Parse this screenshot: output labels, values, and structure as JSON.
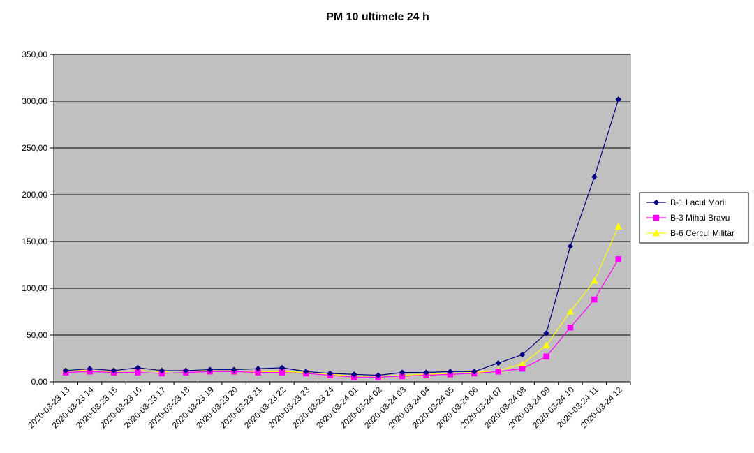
{
  "chart_data": {
    "type": "line",
    "title": "PM 10 ultimele 24 h",
    "xlabel": "",
    "ylabel": "",
    "ylim": [
      0,
      350
    ],
    "yticks": [
      "0,00",
      "50,00",
      "100,00",
      "150,00",
      "200,00",
      "250,00",
      "300,00",
      "350,00"
    ],
    "grid": true,
    "legend_position": "right",
    "plot_background": "#c0c0c0",
    "categories": [
      "2020-03-23 13",
      "2020-03-23 14",
      "2020-03-23 15",
      "2020-03-23 16",
      "2020-03-23 17",
      "2020-03-23 18",
      "2020-03-23 19",
      "2020-03-23 20",
      "2020-03-23 21",
      "2020-03-23 22",
      "2020-03-23 23",
      "2020-03-23 24",
      "2020-03-24 01",
      "2020-03-24 02",
      "2020-03-24 03",
      "2020-03-24 04",
      "2020-03-24 05",
      "2020-03-24 06",
      "2020-03-24 07",
      "2020-03-24 08",
      "2020-03-24 09",
      "2020-03-24 10",
      "2020-03-24 11",
      "2020-03-24 12"
    ],
    "series": [
      {
        "name": "B-1 Lacul Morii",
        "color": "#000080",
        "marker": "diamond",
        "values": [
          12,
          14,
          12,
          15,
          12,
          12,
          13,
          13,
          14,
          15,
          11,
          9,
          8,
          7,
          10,
          10,
          11,
          11,
          20,
          29,
          52,
          145,
          219,
          302
        ]
      },
      {
        "name": "B-3 Mihai Bravu",
        "color": "#ff00ff",
        "marker": "square",
        "values": [
          10,
          11,
          10,
          10,
          9,
          10,
          11,
          11,
          10,
          10,
          9,
          7,
          5,
          5,
          6,
          7,
          8,
          9,
          11,
          14,
          27,
          58,
          88,
          131
        ]
      },
      {
        "name": "B-6 Cercul Militar",
        "color": "#ffff00",
        "marker": "triangle",
        "values": [
          12,
          12,
          11,
          12,
          11,
          12,
          12,
          11,
          11,
          11,
          10,
          8,
          6,
          6,
          7,
          8,
          9,
          10,
          12,
          19,
          39,
          75,
          108,
          166
        ]
      }
    ]
  }
}
